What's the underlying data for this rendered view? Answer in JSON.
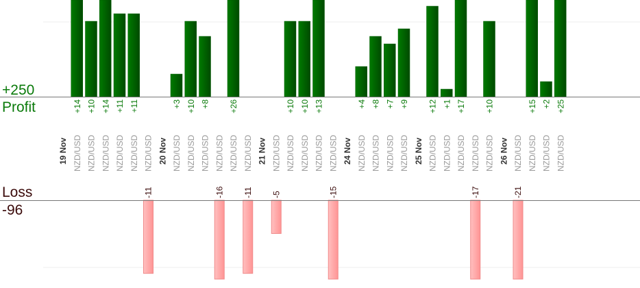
{
  "labels": {
    "profit_total": "+250",
    "profit": "Profit",
    "loss": "Loss",
    "loss_total": "-96"
  },
  "colors": {
    "profit_bar": "#006a00",
    "profit_text": "#0a7a0a",
    "loss_bar": "#ffa8a8",
    "loss_text": "#3a0a0a",
    "category_text": "#999999"
  },
  "chart_data": {
    "type": "bar",
    "title": "",
    "profit_gridline": 10,
    "loss_gridline": -10,
    "groups": [
      {
        "date": "19 Nov",
        "trades": [
          {
            "pair": "NZD/USD",
            "value": 14
          },
          {
            "pair": "NZD/USD",
            "value": 10
          },
          {
            "pair": "NZD/USD",
            "value": 14
          },
          {
            "pair": "NZD/USD",
            "value": 11
          },
          {
            "pair": "NZD/USD",
            "value": 11
          },
          {
            "pair": "NZD/USD",
            "value": -11
          }
        ]
      },
      {
        "date": "20 Nov",
        "trades": [
          {
            "pair": "NZD/USD",
            "value": 3
          },
          {
            "pair": "NZD/USD",
            "value": 10
          },
          {
            "pair": "NZD/USD",
            "value": 8
          },
          {
            "pair": "NZD/USD",
            "value": -16
          },
          {
            "pair": "NZD/USD",
            "value": 26
          },
          {
            "pair": "NZD/USD",
            "value": -11
          }
        ]
      },
      {
        "date": "21 Nov",
        "trades": [
          {
            "pair": "NZD/USD",
            "value": -5
          },
          {
            "pair": "NZD/USD",
            "value": 10
          },
          {
            "pair": "NZD/USD",
            "value": 10
          },
          {
            "pair": "NZD/USD",
            "value": 13
          },
          {
            "pair": "NZD/USD",
            "value": -15
          }
        ]
      },
      {
        "date": "24 Nov",
        "trades": [
          {
            "pair": "NZD/USD",
            "value": 4
          },
          {
            "pair": "NZD/USD",
            "value": 8
          },
          {
            "pair": "NZD/USD",
            "value": 7
          },
          {
            "pair": "NZD/USD",
            "value": 9
          }
        ]
      },
      {
        "date": "25 Nov",
        "trades": [
          {
            "pair": "NZD/USD",
            "value": 12
          },
          {
            "pair": "NZD/USD",
            "value": 1
          },
          {
            "pair": "NZD/USD",
            "value": 17
          },
          {
            "pair": "NZD/USD",
            "value": -17
          },
          {
            "pair": "NZD/USD",
            "value": 10
          }
        ]
      },
      {
        "date": "26 Nov",
        "trades": [
          {
            "pair": "NZD/USD",
            "value": -21
          },
          {
            "pair": "NZD/USD",
            "value": 15
          },
          {
            "pair": "NZD/USD",
            "value": 2
          },
          {
            "pair": "NZD/USD",
            "value": 25
          }
        ]
      }
    ]
  }
}
